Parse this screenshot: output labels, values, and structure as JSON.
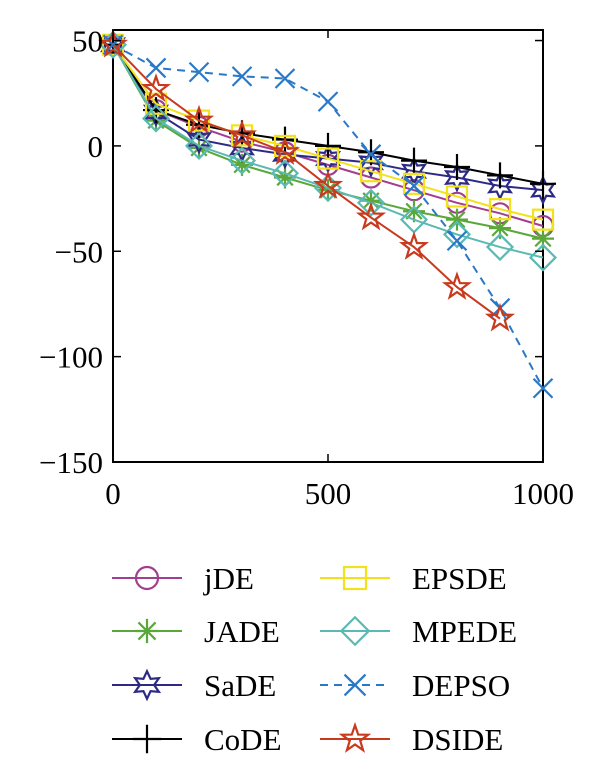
{
  "chart_data": {
    "type": "line",
    "title": "",
    "xlabel": "",
    "ylabel": "",
    "xlim": [
      0,
      1000
    ],
    "ylim": [
      -150,
      55
    ],
    "x_ticks": [
      0,
      500,
      1000
    ],
    "x_tick_labels": [
      "0",
      "500",
      "1000"
    ],
    "y_ticks": [
      50,
      0,
      -50,
      -100,
      -150
    ],
    "y_tick_labels": [
      "50",
      "0",
      "−50",
      "−100",
      "−150"
    ],
    "grid": false,
    "legend_position": "bottom",
    "x": [
      0,
      100,
      200,
      300,
      400,
      500,
      600,
      700,
      800,
      900,
      1000
    ],
    "series": [
      {
        "name": "jDE",
        "color": "#a23e8f",
        "marker": "circle",
        "dash": "solid",
        "values": [
          48,
          17,
          9,
          2,
          -3,
          -9,
          -15,
          -21,
          -27,
          -32,
          -38
        ]
      },
      {
        "name": "JADE",
        "color": "#5aa83a",
        "marker": "asterisk",
        "dash": "solid",
        "values": [
          48,
          12,
          -1,
          -9,
          -15,
          -21,
          -26,
          -31,
          -35,
          -39,
          -44
        ]
      },
      {
        "name": "SaDE",
        "color": "#2d2a86",
        "marker": "star6",
        "dash": "solid",
        "values": [
          48,
          16,
          3,
          -1,
          -4,
          -6,
          -8,
          -12,
          -15,
          -19,
          -21
        ]
      },
      {
        "name": "CoDE",
        "color": "#000000",
        "marker": "plus",
        "dash": "solid",
        "values": [
          48,
          17,
          10,
          6,
          3,
          0,
          -3,
          -7,
          -10,
          -14,
          -18
        ]
      },
      {
        "name": "EPSDE",
        "color": "#f2e21c",
        "marker": "square",
        "dash": "solid",
        "values": [
          48,
          20,
          12,
          5,
          0,
          -6,
          -12,
          -18,
          -24,
          -30,
          -35
        ]
      },
      {
        "name": "MPEDE",
        "color": "#5bb9b4",
        "marker": "diamond",
        "dash": "solid",
        "values": [
          48,
          13,
          0,
          -7,
          -13,
          -20,
          -27,
          -35,
          -42,
          -48,
          -53
        ]
      },
      {
        "name": "DEPSO",
        "color": "#2a79c8",
        "marker": "x",
        "dash": "dashed",
        "values": [
          48,
          37,
          35,
          33,
          32,
          21,
          -4,
          -19,
          -45,
          -77,
          -115
        ]
      },
      {
        "name": "DSIDE",
        "color": "#c83a1e",
        "marker": "star5",
        "dash": "solid",
        "values": [
          48,
          27,
          12,
          5,
          -3,
          -19,
          -34,
          -48,
          -67,
          -82,
          null
        ]
      }
    ]
  }
}
